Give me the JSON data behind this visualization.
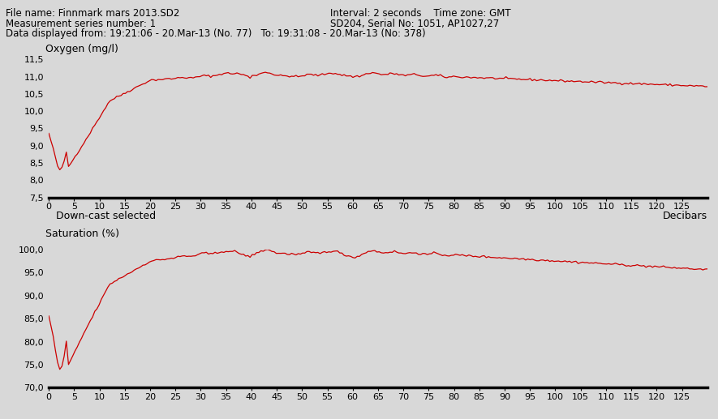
{
  "header_line1_left": "File name: Finnmark mars 2013.SD2",
  "header_line1_right": "Interval: 2 seconds    Time zone: GMT",
  "header_line2_left": "Measurement series number: 1",
  "header_line2_right": "SD204, Serial No: 1051, AP1027,27",
  "header_line3": "Data displayed from: 19:21:06 - 20.Mar-13 (No. 77)   To: 19:31:08 - 20.Mar-13 (No: 378)",
  "downcast_label": "Down-cast selected",
  "decibars_label": "Decibars",
  "plot1_ylabel": "Oxygen (mg/l)",
  "plot2_ylabel": "Saturation (%)",
  "line_color": "#cc0000",
  "background_color": "#d8d8d8",
  "axis_bg_color": "#d8d8d8",
  "plot1_ylim": [
    7.5,
    11.5
  ],
  "plot1_yticks": [
    7.5,
    8.0,
    8.5,
    9.0,
    9.5,
    10.0,
    10.5,
    11.0,
    11.5
  ],
  "plot2_ylim": [
    70.0,
    100.0
  ],
  "plot2_yticks": [
    70.0,
    75.0,
    80.0,
    85.0,
    90.0,
    95.0,
    100.0
  ],
  "xlim": [
    0,
    130
  ],
  "xticks": [
    0,
    5,
    10,
    15,
    20,
    25,
    30,
    35,
    40,
    45,
    50,
    55,
    60,
    65,
    70,
    75,
    80,
    85,
    90,
    95,
    100,
    105,
    110,
    115,
    120,
    125
  ]
}
